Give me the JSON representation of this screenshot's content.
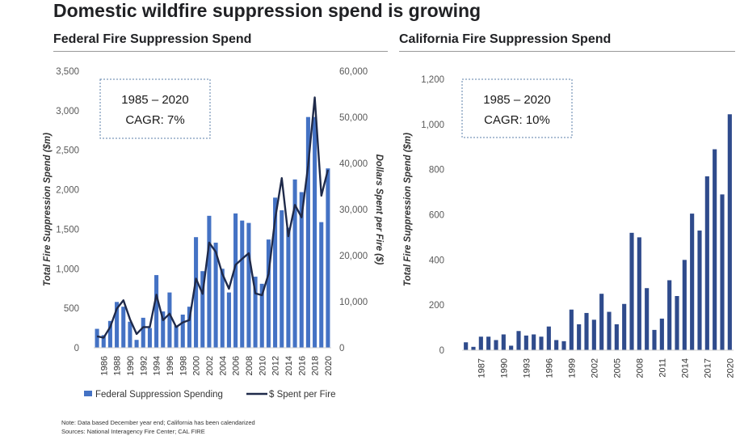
{
  "page": {
    "title": "Domestic wildfire suppression spend is growing",
    "note": "Note: Data based December year end; California has been calendarized",
    "sources": "Sources: National Interagency Fire Center; CAL FIRE"
  },
  "colors": {
    "bar": "#4472C4",
    "bar_dark": "#2F4B8C",
    "line": "#1F2A4A",
    "box_border": "#5B7FA8",
    "axis_text": "#595959"
  },
  "chart_data": [
    {
      "id": "federal",
      "type": "bar",
      "title": "Federal Fire Suppression Spend",
      "cagr_box": {
        "line1": "1985 – 2020",
        "line2": "CAGR: 7%"
      },
      "ylabel": "Total Fire Suppression Spend ($m)",
      "y2label": "Dollars Spent per Fire ($)",
      "ylim": [
        0,
        3500
      ],
      "y2lim": [
        0,
        60000
      ],
      "yticks": [
        "0",
        "500",
        "1,000",
        "1,500",
        "2,000",
        "2,500",
        "3,000",
        "3,500"
      ],
      "y2ticks": [
        "0",
        "10,000",
        "20,000",
        "30,000",
        "40,000",
        "50,000",
        "60,000"
      ],
      "x": [
        1985,
        1986,
        1987,
        1988,
        1989,
        1990,
        1991,
        1992,
        1993,
        1994,
        1995,
        1996,
        1997,
        1998,
        1999,
        2000,
        2001,
        2002,
        2003,
        2004,
        2005,
        2006,
        2007,
        2008,
        2009,
        2010,
        2011,
        2012,
        2013,
        2014,
        2015,
        2016,
        2017,
        2018,
        2019,
        2020
      ],
      "xtick_labels": [
        "1986",
        "1988",
        "1990",
        "1992",
        "1994",
        "1996",
        "1998",
        "2000",
        "2002",
        "2004",
        "2006",
        "2008",
        "2010",
        "2012",
        "2014",
        "2016",
        "2018",
        "2020"
      ],
      "series": [
        {
          "name": "Federal Suppression Spending",
          "kind": "bar",
          "values": [
            240,
            160,
            340,
            580,
            520,
            330,
            100,
            380,
            250,
            920,
            460,
            700,
            280,
            420,
            520,
            1400,
            970,
            1670,
            1330,
            1000,
            700,
            1700,
            1610,
            1580,
            900,
            810,
            1370,
            1900,
            1740,
            1520,
            2130,
            1970,
            2920,
            2920,
            1590,
            2270
          ]
        },
        {
          "name": "$ Spent per Fire",
          "kind": "line",
          "values": [
            2500,
            2200,
            4500,
            8500,
            10300,
            6200,
            3000,
            4500,
            4500,
            11500,
            6000,
            7400,
            4500,
            5500,
            6000,
            15000,
            11700,
            22800,
            20800,
            16000,
            12800,
            18000,
            19300,
            20500,
            11800,
            11400,
            16000,
            28000,
            36800,
            24200,
            31000,
            28300,
            39500,
            54300,
            33000,
            38600
          ]
        }
      ],
      "legend": "bottom"
    },
    {
      "id": "california",
      "type": "bar",
      "title": "California Fire Suppression Spend",
      "cagr_box": {
        "line1": "1985 – 2020",
        "line2": "CAGR: 10%"
      },
      "ylabel": "Total Fire Suppression Spend ($m)",
      "ylim": [
        0,
        1200
      ],
      "yticks": [
        "0",
        "200",
        "400",
        "600",
        "800",
        "1,000",
        "1,200"
      ],
      "x": [
        1985,
        1986,
        1987,
        1988,
        1989,
        1990,
        1991,
        1992,
        1993,
        1994,
        1995,
        1996,
        1997,
        1998,
        1999,
        2000,
        2001,
        2002,
        2003,
        2004,
        2005,
        2006,
        2007,
        2008,
        2009,
        2010,
        2011,
        2012,
        2013,
        2014,
        2015,
        2016,
        2017,
        2018,
        2019,
        2020
      ],
      "xtick_labels": [
        "1987",
        "1990",
        "1993",
        "1996",
        "1999",
        "2002",
        "2005",
        "2008",
        "2011",
        "2014",
        "2017",
        "2020"
      ],
      "series": [
        {
          "name": "California Suppression Spending",
          "kind": "bar",
          "values": [
            35,
            15,
            60,
            60,
            45,
            70,
            20,
            85,
            65,
            70,
            60,
            105,
            45,
            40,
            180,
            115,
            165,
            135,
            250,
            170,
            115,
            205,
            520,
            500,
            275,
            90,
            140,
            310,
            240,
            400,
            605,
            530,
            770,
            890,
            690,
            1045
          ]
        }
      ]
    }
  ]
}
